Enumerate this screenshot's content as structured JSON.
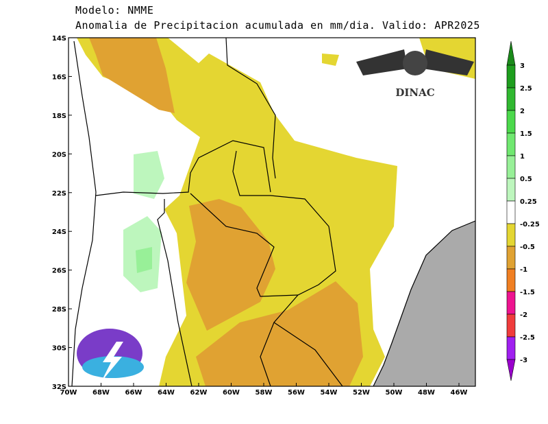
{
  "header": {
    "model": "Modelo: NMME",
    "title": "Anomalia de Precipitacion acumulada en mm/dia.  Valido: APR2025"
  },
  "axes": {
    "x_labels": [
      "70W",
      "68W",
      "66W",
      "64W",
      "62W",
      "60W",
      "58W",
      "56W",
      "54W",
      "52W",
      "50W",
      "48W",
      "46W"
    ],
    "y_labels": [
      "14S",
      "16S",
      "18S",
      "20S",
      "22S",
      "24S",
      "26S",
      "28S",
      "30S",
      "32S"
    ]
  },
  "colorbar": {
    "labels": [
      "3",
      "2.5",
      "2",
      "1.5",
      "1",
      "0.5",
      "0.25",
      "-0.25",
      "-0.5",
      "-1",
      "-1.5",
      "-2",
      "-2.5",
      "-3"
    ],
    "colors": [
      "#1e9e1e",
      "#30b830",
      "#4cd94c",
      "#70e870",
      "#98f098",
      "#bdf6bd",
      "#ffffff",
      "#e4d632",
      "#e0a232",
      "#f07f22",
      "#ee1490",
      "#f03c3c",
      "#a020f0"
    ]
  },
  "logo": {
    "text": "DINAC"
  }
}
